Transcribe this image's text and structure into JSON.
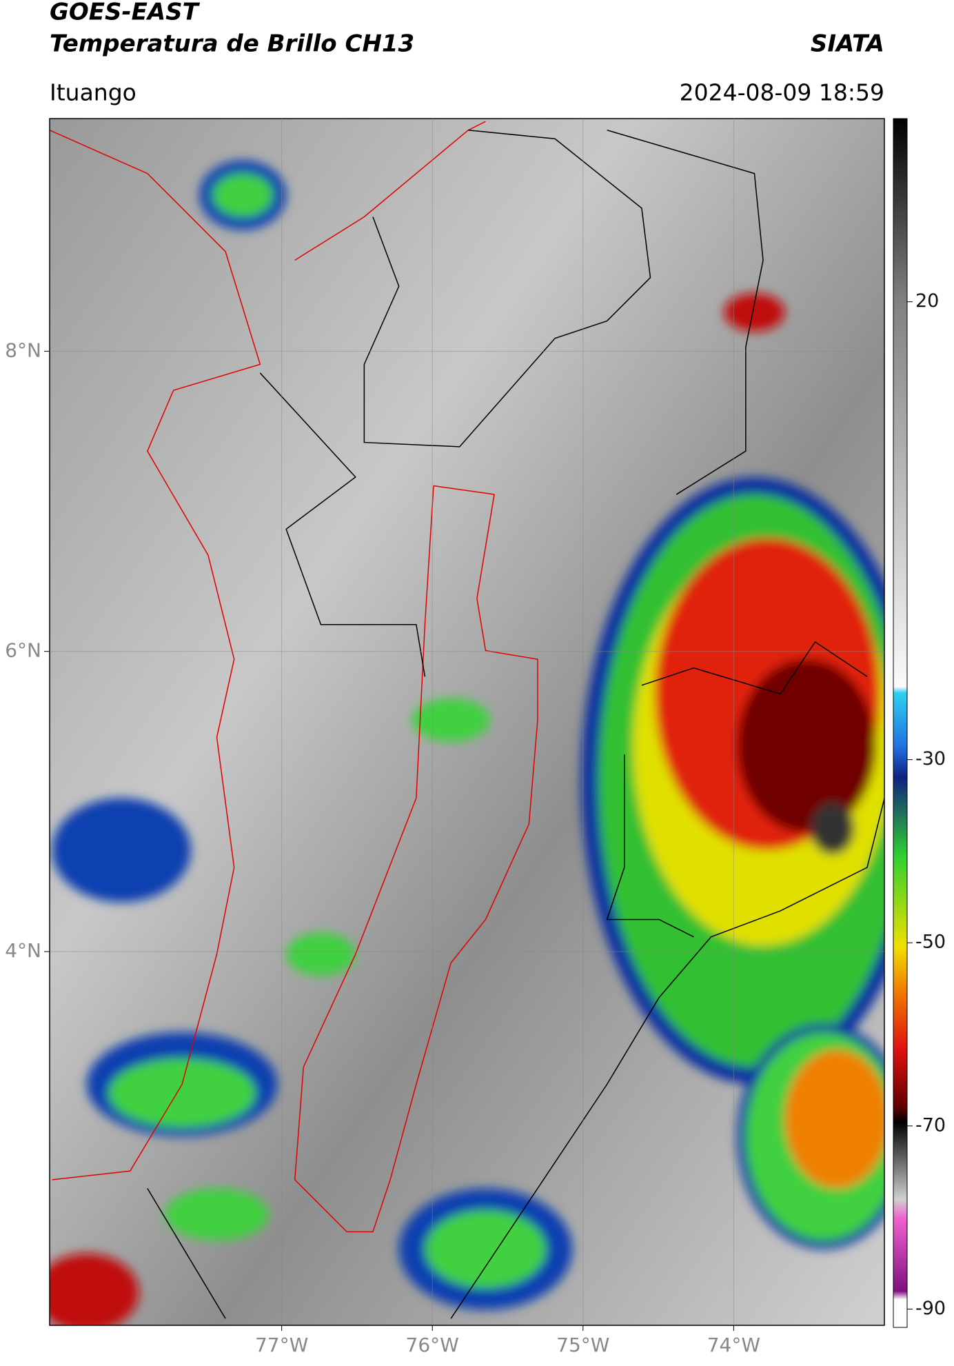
{
  "header": {
    "title": "GOES-EAST",
    "subtitle": "Temperatura de Brillo CH13",
    "source": "SIATA",
    "location": "Ituango",
    "timestamp": "2024-08-09 18:59"
  },
  "map": {
    "lonlim": [
      -78.54,
      -73.0
    ],
    "latlim": [
      1.51,
      9.55
    ],
    "xticks": [
      {
        "value": -77,
        "label": "77°W"
      },
      {
        "value": -76,
        "label": "76°W"
      },
      {
        "value": -75,
        "label": "75°W"
      },
      {
        "value": -74,
        "label": "74°W"
      }
    ],
    "yticks": [
      {
        "value": 8,
        "label": "8°N"
      },
      {
        "value": 6,
        "label": "6°N"
      },
      {
        "value": 4,
        "label": "4°N"
      }
    ],
    "grid": true
  },
  "colorbar": {
    "lim": [
      -92,
      40
    ],
    "ticks": [
      20,
      -30,
      -50,
      -70,
      -90
    ]
  }
}
